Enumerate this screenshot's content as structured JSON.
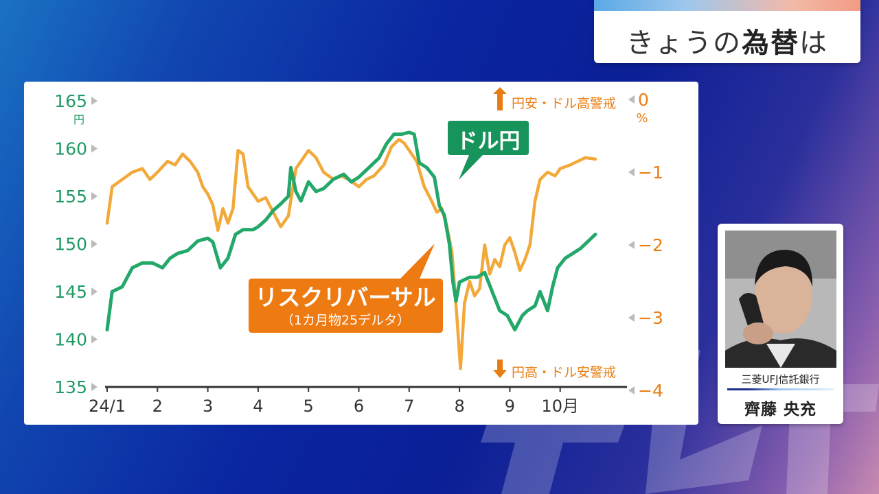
{
  "header": {
    "title_pre": "きょうの",
    "title_bold": "為替",
    "title_post": "は"
  },
  "watermark": "テレ東",
  "chart_data": {
    "type": "line",
    "x_ticks": [
      "24/1",
      "2",
      "3",
      "4",
      "5",
      "6",
      "7",
      "8",
      "9",
      "10月"
    ],
    "y_left": {
      "ticks": [
        165,
        160,
        155,
        150,
        145,
        140,
        135
      ],
      "unit": "円",
      "range": [
        135,
        165
      ]
    },
    "y_right": {
      "ticks": [
        "0",
        "−1",
        "−2",
        "−3",
        "−4"
      ],
      "unit": "%",
      "range": [
        -4,
        0
      ]
    },
    "annotation_top": "円安・ドル高警戒",
    "annotation_bottom": "円高・ドル安警戒",
    "colors": {
      "usdjpy": "#23a86a",
      "risk_reversal": "#f2a93a",
      "axis_left": "#1f9a63",
      "axis_right": "#e87e12",
      "callout_green": "#17945c",
      "callout_orange": "#ee7a12"
    },
    "series": [
      {
        "name": "ドル円",
        "axis": "left",
        "points": [
          [
            1.0,
            141
          ],
          [
            1.1,
            145
          ],
          [
            1.3,
            145.5
          ],
          [
            1.5,
            147.5
          ],
          [
            1.7,
            148
          ],
          [
            1.9,
            148
          ],
          [
            2.1,
            147.5
          ],
          [
            2.25,
            148.5
          ],
          [
            2.4,
            149
          ],
          [
            2.6,
            149.3
          ],
          [
            2.8,
            150.3
          ],
          [
            3.0,
            150.6
          ],
          [
            3.1,
            150.2
          ],
          [
            3.25,
            147.5
          ],
          [
            3.4,
            148.5
          ],
          [
            3.55,
            151
          ],
          [
            3.7,
            151.5
          ],
          [
            3.9,
            151.5
          ],
          [
            4.0,
            151.8
          ],
          [
            4.15,
            152.5
          ],
          [
            4.3,
            153.5
          ],
          [
            4.45,
            154.2
          ],
          [
            4.6,
            155
          ],
          [
            4.65,
            158
          ],
          [
            4.75,
            155.5
          ],
          [
            4.85,
            154.5
          ],
          [
            5.0,
            156.5
          ],
          [
            5.15,
            155.5
          ],
          [
            5.3,
            155.8
          ],
          [
            5.5,
            156.8
          ],
          [
            5.7,
            157.3
          ],
          [
            5.85,
            156.5
          ],
          [
            6.0,
            157
          ],
          [
            6.2,
            158
          ],
          [
            6.4,
            159
          ],
          [
            6.55,
            160.5
          ],
          [
            6.7,
            161.5
          ],
          [
            6.85,
            161.5
          ],
          [
            7.0,
            161.7
          ],
          [
            7.1,
            161.5
          ],
          [
            7.2,
            158.5
          ],
          [
            7.35,
            158
          ],
          [
            7.5,
            157
          ],
          [
            7.6,
            154
          ],
          [
            7.7,
            153
          ],
          [
            7.8,
            150
          ],
          [
            7.87,
            146
          ],
          [
            7.93,
            144
          ],
          [
            8.0,
            146
          ],
          [
            8.2,
            146.5
          ],
          [
            8.35,
            146.5
          ],
          [
            8.5,
            147
          ],
          [
            8.65,
            145
          ],
          [
            8.8,
            143
          ],
          [
            8.95,
            142.5
          ],
          [
            9.1,
            141
          ],
          [
            9.25,
            142.5
          ],
          [
            9.35,
            143
          ],
          [
            9.5,
            143.5
          ],
          [
            9.6,
            145
          ],
          [
            9.75,
            143
          ],
          [
            9.85,
            145.5
          ],
          [
            9.95,
            147.5
          ],
          [
            10.1,
            148.5
          ],
          [
            10.25,
            149
          ],
          [
            10.4,
            149.5
          ],
          [
            10.5,
            150
          ],
          [
            10.6,
            150.5
          ],
          [
            10.7,
            151
          ]
        ]
      },
      {
        "name": "リスクリバーサル",
        "sub": "（1カ月物25デルタ）",
        "axis": "right",
        "points": [
          [
            1.0,
            -1.7
          ],
          [
            1.1,
            -1.2
          ],
          [
            1.3,
            -1.1
          ],
          [
            1.5,
            -1.0
          ],
          [
            1.7,
            -0.95
          ],
          [
            1.85,
            -1.1
          ],
          [
            2.0,
            -1.0
          ],
          [
            2.2,
            -0.85
          ],
          [
            2.35,
            -0.9
          ],
          [
            2.5,
            -0.75
          ],
          [
            2.65,
            -0.85
          ],
          [
            2.8,
            -1.0
          ],
          [
            2.9,
            -1.2
          ],
          [
            3.0,
            -1.3
          ],
          [
            3.1,
            -1.45
          ],
          [
            3.2,
            -1.8
          ],
          [
            3.3,
            -1.5
          ],
          [
            3.4,
            -1.7
          ],
          [
            3.5,
            -1.5
          ],
          [
            3.6,
            -0.7
          ],
          [
            3.7,
            -0.75
          ],
          [
            3.8,
            -1.2
          ],
          [
            3.9,
            -1.3
          ],
          [
            4.0,
            -1.4
          ],
          [
            4.15,
            -1.35
          ],
          [
            4.3,
            -1.55
          ],
          [
            4.45,
            -1.75
          ],
          [
            4.6,
            -1.6
          ],
          [
            4.75,
            -0.95
          ],
          [
            4.9,
            -0.8
          ],
          [
            5.0,
            -0.7
          ],
          [
            5.15,
            -0.8
          ],
          [
            5.3,
            -1.0
          ],
          [
            5.5,
            -1.1
          ],
          [
            5.65,
            -1.05
          ],
          [
            5.8,
            -1.1
          ],
          [
            6.0,
            -1.2
          ],
          [
            6.15,
            -1.1
          ],
          [
            6.3,
            -1.05
          ],
          [
            6.5,
            -0.9
          ],
          [
            6.65,
            -0.65
          ],
          [
            6.8,
            -0.55
          ],
          [
            6.9,
            -0.6
          ],
          [
            7.0,
            -0.7
          ],
          [
            7.15,
            -0.85
          ],
          [
            7.3,
            -1.2
          ],
          [
            7.45,
            -1.4
          ],
          [
            7.55,
            -1.55
          ],
          [
            7.65,
            -1.5
          ],
          [
            7.75,
            -1.75
          ],
          [
            7.85,
            -2.1
          ],
          [
            7.95,
            -3.0
          ],
          [
            8.02,
            -3.7
          ],
          [
            8.1,
            -2.8
          ],
          [
            8.2,
            -2.5
          ],
          [
            8.3,
            -2.7
          ],
          [
            8.4,
            -2.6
          ],
          [
            8.5,
            -2.0
          ],
          [
            8.6,
            -2.4
          ],
          [
            8.7,
            -2.2
          ],
          [
            8.8,
            -2.3
          ],
          [
            8.9,
            -2.0
          ],
          [
            9.0,
            -1.9
          ],
          [
            9.1,
            -2.1
          ],
          [
            9.2,
            -2.35
          ],
          [
            9.3,
            -2.2
          ],
          [
            9.4,
            -2.0
          ],
          [
            9.5,
            -1.4
          ],
          [
            9.6,
            -1.1
          ],
          [
            9.75,
            -1.0
          ],
          [
            9.9,
            -1.05
          ],
          [
            10.0,
            -0.95
          ],
          [
            10.2,
            -0.9
          ],
          [
            10.35,
            -0.85
          ],
          [
            10.5,
            -0.8
          ],
          [
            10.7,
            -0.82
          ]
        ]
      }
    ]
  },
  "person": {
    "affiliation": "三菱UFJ信託銀行",
    "name": "齊藤 央充"
  }
}
